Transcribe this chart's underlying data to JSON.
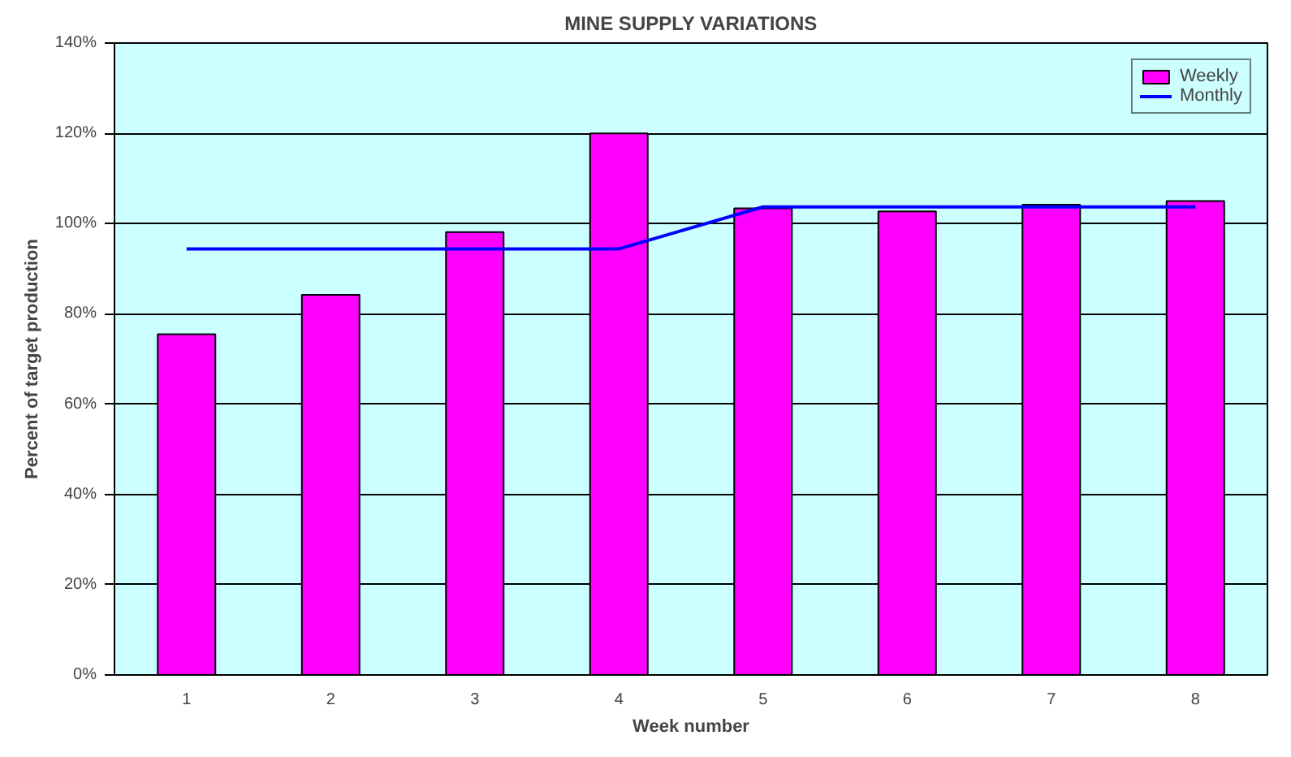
{
  "chart_data": {
    "type": "bar",
    "title": "MINE SUPPLY VARIATIONS",
    "xlabel": "Week number",
    "ylabel": "Percent of target production",
    "categories": [
      "1",
      "2",
      "3",
      "4",
      "5",
      "6",
      "7",
      "8"
    ],
    "series": [
      {
        "name": "Weekly",
        "color": "#ff00ff",
        "values": [
          75.5,
          84.2,
          98.1,
          120,
          103.4,
          102.7,
          104.2,
          105
        ]
      },
      {
        "name": "Monthly",
        "type": "line",
        "color": "#0000ff",
        "values": [
          94.4,
          94.4,
          94.4,
          94.4,
          103.7,
          103.7,
          103.7,
          103.7
        ]
      }
    ],
    "ylim": [
      0,
      140
    ],
    "yticks": [
      {
        "value": 0,
        "label": "0%"
      },
      {
        "value": 20,
        "label": "20%"
      },
      {
        "value": 40,
        "label": "40%"
      },
      {
        "value": 60,
        "label": "60%"
      },
      {
        "value": 80,
        "label": "80%"
      },
      {
        "value": 100,
        "label": "100%"
      },
      {
        "value": 120,
        "label": "120%"
      },
      {
        "value": 140,
        "label": "140%"
      }
    ],
    "grid": "y",
    "legend": "top right"
  }
}
